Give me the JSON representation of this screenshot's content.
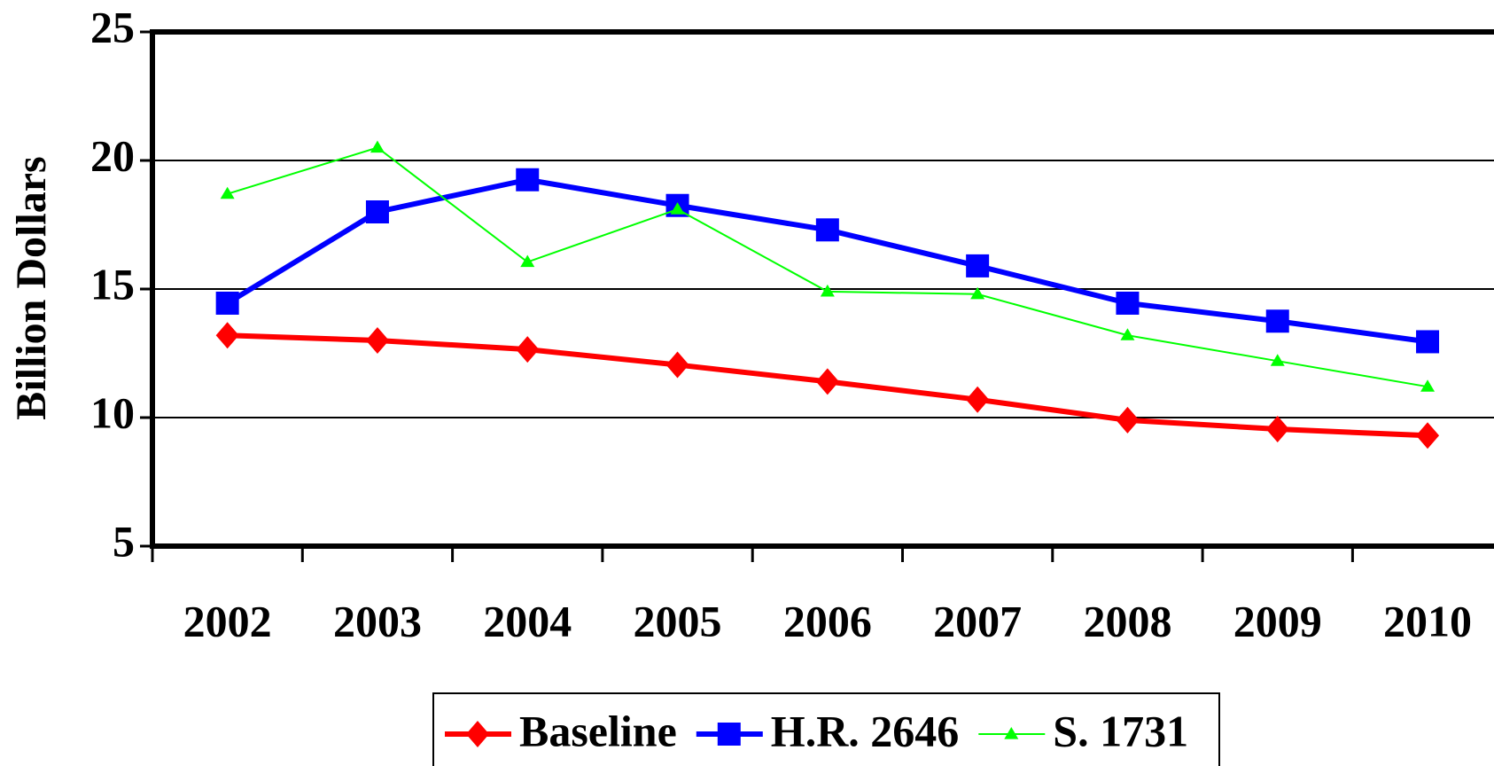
{
  "chart_data": {
    "type": "line",
    "y_label": "Billion Dollars",
    "categories": [
      "2002",
      "2003",
      "2004",
      "2005",
      "2006",
      "2007",
      "2008",
      "2009",
      "2010"
    ],
    "series": [
      {
        "name": "Baseline",
        "color": "#ff0000",
        "marker": "diamond",
        "values": [
          13.2,
          13.0,
          12.65,
          12.05,
          11.4,
          10.7,
          9.9,
          9.55,
          9.3
        ]
      },
      {
        "name": "H.R. 2646",
        "color": "#0000ff",
        "marker": "square",
        "values": [
          14.45,
          18.0,
          19.25,
          18.25,
          17.3,
          15.9,
          14.45,
          13.75,
          12.95
        ]
      },
      {
        "name": "S. 1731",
        "color": "#00ff00",
        "marker": "triangle",
        "values": [
          18.7,
          20.5,
          16.05,
          18.1,
          14.9,
          14.8,
          13.2,
          12.2,
          11.2
        ]
      }
    ],
    "ylim": [
      5,
      25
    ],
    "yticks": [
      5,
      10,
      15,
      20,
      25
    ],
    "grid": true,
    "legend": "bottom"
  }
}
